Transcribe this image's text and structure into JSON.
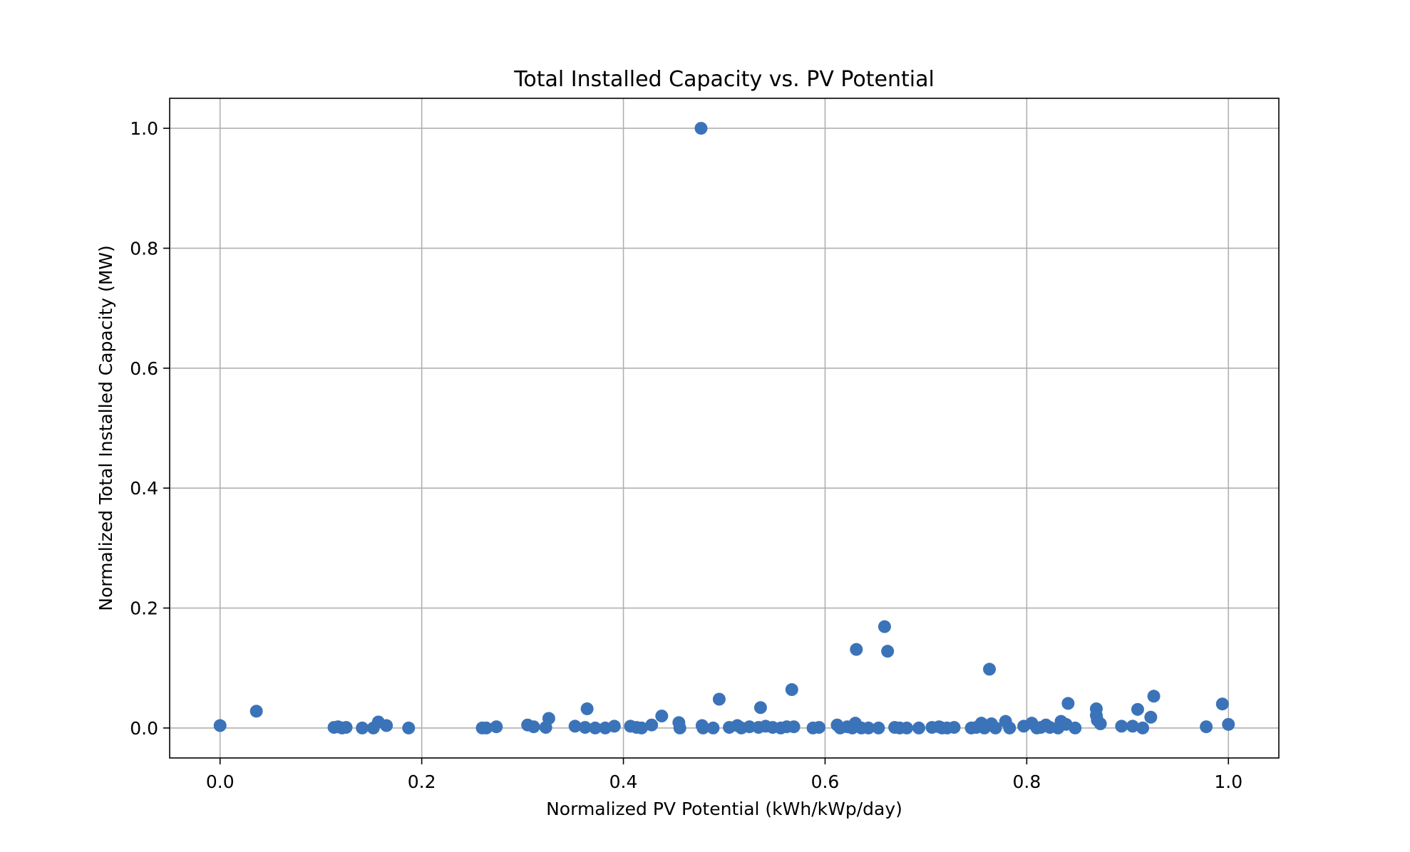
{
  "chart_data": {
    "type": "scatter",
    "title": "Total Installed Capacity vs. PV Potential",
    "xlabel": "Normalized PV Potential (kWh/kWp/day)",
    "ylabel": "Normalized Total Installed Capacity (MW)",
    "xlim": [
      -0.05,
      1.05
    ],
    "ylim": [
      -0.05,
      1.05
    ],
    "xticks": [
      "0.0",
      "0.2",
      "0.4",
      "0.6",
      "0.8",
      "1.0"
    ],
    "yticks": [
      "0.0",
      "0.2",
      "0.4",
      "0.6",
      "0.8",
      "1.0"
    ],
    "grid": true,
    "marker_color": "#3b73b9",
    "points": [
      {
        "x": 0.0,
        "y": 0.004
      },
      {
        "x": 0.036,
        "y": 0.028
      },
      {
        "x": 0.113,
        "y": 0.001
      },
      {
        "x": 0.117,
        "y": 0.002
      },
      {
        "x": 0.121,
        "y": 0.0
      },
      {
        "x": 0.125,
        "y": 0.001
      },
      {
        "x": 0.141,
        "y": 0.0
      },
      {
        "x": 0.152,
        "y": 0.0
      },
      {
        "x": 0.157,
        "y": 0.01
      },
      {
        "x": 0.165,
        "y": 0.004
      },
      {
        "x": 0.187,
        "y": 0.0
      },
      {
        "x": 0.26,
        "y": 0.0
      },
      {
        "x": 0.264,
        "y": 0.0
      },
      {
        "x": 0.274,
        "y": 0.002
      },
      {
        "x": 0.305,
        "y": 0.005
      },
      {
        "x": 0.311,
        "y": 0.002
      },
      {
        "x": 0.323,
        "y": 0.001
      },
      {
        "x": 0.326,
        "y": 0.016
      },
      {
        "x": 0.352,
        "y": 0.003
      },
      {
        "x": 0.362,
        "y": 0.001
      },
      {
        "x": 0.364,
        "y": 0.032
      },
      {
        "x": 0.372,
        "y": 0.0
      },
      {
        "x": 0.382,
        "y": 0.0
      },
      {
        "x": 0.391,
        "y": 0.003
      },
      {
        "x": 0.407,
        "y": 0.003
      },
      {
        "x": 0.413,
        "y": 0.001
      },
      {
        "x": 0.418,
        "y": 0.0
      },
      {
        "x": 0.428,
        "y": 0.005
      },
      {
        "x": 0.438,
        "y": 0.02
      },
      {
        "x": 0.455,
        "y": 0.009
      },
      {
        "x": 0.456,
        "y": 0.0
      },
      {
        "x": 0.477,
        "y": 1.0
      },
      {
        "x": 0.478,
        "y": 0.004
      },
      {
        "x": 0.479,
        "y": 0.0
      },
      {
        "x": 0.489,
        "y": 0.0
      },
      {
        "x": 0.495,
        "y": 0.048
      },
      {
        "x": 0.505,
        "y": 0.001
      },
      {
        "x": 0.513,
        "y": 0.004
      },
      {
        "x": 0.517,
        "y": 0.0
      },
      {
        "x": 0.525,
        "y": 0.002
      },
      {
        "x": 0.534,
        "y": 0.001
      },
      {
        "x": 0.536,
        "y": 0.034
      },
      {
        "x": 0.541,
        "y": 0.003
      },
      {
        "x": 0.548,
        "y": 0.001
      },
      {
        "x": 0.556,
        "y": 0.0
      },
      {
        "x": 0.562,
        "y": 0.002
      },
      {
        "x": 0.567,
        "y": 0.064
      },
      {
        "x": 0.569,
        "y": 0.002
      },
      {
        "x": 0.588,
        "y": 0.0
      },
      {
        "x": 0.594,
        "y": 0.001
      },
      {
        "x": 0.612,
        "y": 0.005
      },
      {
        "x": 0.615,
        "y": 0.0
      },
      {
        "x": 0.622,
        "y": 0.002
      },
      {
        "x": 0.627,
        "y": 0.0
      },
      {
        "x": 0.63,
        "y": 0.008
      },
      {
        "x": 0.631,
        "y": 0.131
      },
      {
        "x": 0.636,
        "y": 0.0
      },
      {
        "x": 0.643,
        "y": 0.0
      },
      {
        "x": 0.653,
        "y": 0.0
      },
      {
        "x": 0.659,
        "y": 0.169
      },
      {
        "x": 0.662,
        "y": 0.128
      },
      {
        "x": 0.669,
        "y": 0.001
      },
      {
        "x": 0.674,
        "y": 0.0
      },
      {
        "x": 0.681,
        "y": 0.0
      },
      {
        "x": 0.693,
        "y": 0.0
      },
      {
        "x": 0.706,
        "y": 0.001
      },
      {
        "x": 0.713,
        "y": 0.002
      },
      {
        "x": 0.716,
        "y": 0.0
      },
      {
        "x": 0.721,
        "y": 0.0
      },
      {
        "x": 0.728,
        "y": 0.001
      },
      {
        "x": 0.745,
        "y": 0.0
      },
      {
        "x": 0.75,
        "y": 0.001
      },
      {
        "x": 0.755,
        "y": 0.008
      },
      {
        "x": 0.758,
        "y": 0.0
      },
      {
        "x": 0.763,
        "y": 0.098
      },
      {
        "x": 0.765,
        "y": 0.007
      },
      {
        "x": 0.769,
        "y": 0.0
      },
      {
        "x": 0.779,
        "y": 0.011
      },
      {
        "x": 0.783,
        "y": 0.0
      },
      {
        "x": 0.797,
        "y": 0.003
      },
      {
        "x": 0.805,
        "y": 0.008
      },
      {
        "x": 0.81,
        "y": 0.0
      },
      {
        "x": 0.814,
        "y": 0.001
      },
      {
        "x": 0.819,
        "y": 0.005
      },
      {
        "x": 0.823,
        "y": 0.001
      },
      {
        "x": 0.831,
        "y": 0.0
      },
      {
        "x": 0.834,
        "y": 0.011
      },
      {
        "x": 0.839,
        "y": 0.006
      },
      {
        "x": 0.841,
        "y": 0.041
      },
      {
        "x": 0.848,
        "y": 0.0
      },
      {
        "x": 0.869,
        "y": 0.032
      },
      {
        "x": 0.869,
        "y": 0.021
      },
      {
        "x": 0.87,
        "y": 0.013
      },
      {
        "x": 0.873,
        "y": 0.007
      },
      {
        "x": 0.894,
        "y": 0.003
      },
      {
        "x": 0.905,
        "y": 0.003
      },
      {
        "x": 0.91,
        "y": 0.031
      },
      {
        "x": 0.915,
        "y": 0.0
      },
      {
        "x": 0.923,
        "y": 0.018
      },
      {
        "x": 0.926,
        "y": 0.053
      },
      {
        "x": 0.978,
        "y": 0.002
      },
      {
        "x": 0.994,
        "y": 0.04
      },
      {
        "x": 1.0,
        "y": 0.006
      }
    ]
  }
}
